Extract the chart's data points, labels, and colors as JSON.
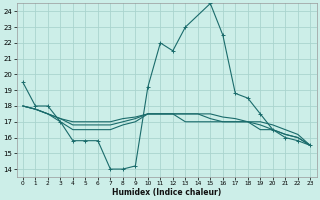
{
  "title": "",
  "xlabel": "Humidex (Indice chaleur)",
  "bg_color": "#cceee8",
  "grid_color": "#aad4ce",
  "line_color": "#1a6b6b",
  "xlim": [
    -0.5,
    23.5
  ],
  "ylim": [
    13.5,
    24.5
  ],
  "yticks": [
    14,
    15,
    16,
    17,
    18,
    19,
    20,
    21,
    22,
    23,
    24
  ],
  "xticks": [
    0,
    1,
    2,
    3,
    4,
    5,
    6,
    7,
    8,
    9,
    10,
    11,
    12,
    13,
    14,
    15,
    16,
    17,
    18,
    19,
    20,
    21,
    22,
    23
  ],
  "series": [
    {
      "x": [
        0,
        1,
        2,
        3,
        4,
        5,
        6,
        7,
        8,
        9,
        10,
        11,
        12,
        13,
        15,
        16,
        17,
        18,
        19,
        20,
        21,
        22,
        23
      ],
      "y": [
        19.5,
        18.0,
        18.0,
        17.0,
        15.8,
        15.8,
        15.8,
        14.0,
        14.0,
        14.2,
        19.2,
        22.0,
        21.5,
        23.0,
        24.5,
        22.5,
        18.8,
        18.5,
        17.5,
        16.5,
        16.0,
        15.8,
        15.5
      ],
      "marker": true
    },
    {
      "x": [
        0,
        1,
        2,
        3,
        4,
        5,
        6,
        7,
        8,
        9,
        10,
        11,
        12,
        13,
        14,
        15,
        16,
        17,
        18,
        19,
        20,
        21,
        22,
        23
      ],
      "y": [
        18.0,
        17.8,
        17.5,
        17.2,
        17.0,
        17.0,
        17.0,
        17.0,
        17.2,
        17.3,
        17.5,
        17.5,
        17.5,
        17.5,
        17.5,
        17.5,
        17.3,
        17.2,
        17.0,
        17.0,
        16.8,
        16.5,
        16.2,
        15.5
      ],
      "marker": false
    },
    {
      "x": [
        0,
        1,
        2,
        3,
        4,
        5,
        6,
        7,
        8,
        9,
        10,
        11,
        12,
        13,
        14,
        15,
        16,
        17,
        18,
        19,
        20,
        21,
        22,
        23
      ],
      "y": [
        18.0,
        17.8,
        17.5,
        17.2,
        16.8,
        16.8,
        16.8,
        16.8,
        17.0,
        17.2,
        17.5,
        17.5,
        17.5,
        17.5,
        17.5,
        17.2,
        17.0,
        17.0,
        17.0,
        16.8,
        16.5,
        16.2,
        16.0,
        15.5
      ],
      "marker": false
    },
    {
      "x": [
        0,
        1,
        2,
        3,
        4,
        5,
        6,
        7,
        8,
        9,
        10,
        11,
        12,
        13,
        14,
        15,
        16,
        17,
        18,
        19,
        20,
        21,
        22,
        23
      ],
      "y": [
        18.0,
        17.8,
        17.5,
        17.0,
        16.5,
        16.5,
        16.5,
        16.5,
        16.8,
        17.0,
        17.5,
        17.5,
        17.5,
        17.0,
        17.0,
        17.0,
        17.0,
        17.0,
        17.0,
        16.5,
        16.5,
        16.2,
        16.0,
        15.5
      ],
      "marker": false
    }
  ]
}
